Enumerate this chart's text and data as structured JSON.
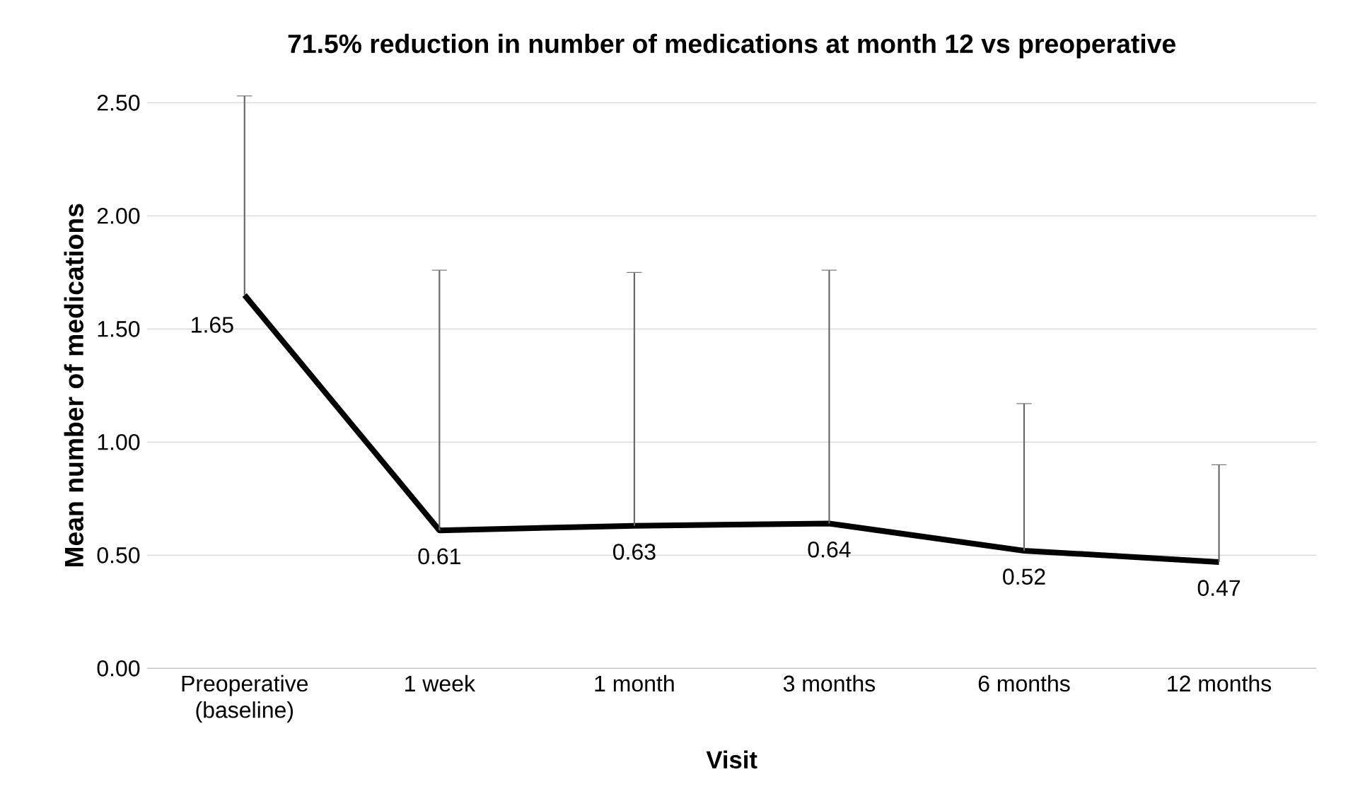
{
  "chart_data": {
    "type": "line",
    "title": "71.5% reduction in number of medications at month 12 vs preoperative",
    "xlabel": "Visit",
    "ylabel": "Mean number of medications",
    "categories": [
      "Preoperative\n(baseline)",
      "1 week",
      "1 month",
      "3 months",
      "6 months",
      "12 months"
    ],
    "values": [
      1.65,
      0.61,
      0.63,
      0.64,
      0.52,
      0.47
    ],
    "errors": [
      [
        1.65,
        2.53
      ],
      [
        0.61,
        1.76
      ],
      [
        0.63,
        1.75
      ],
      [
        0.64,
        1.76
      ],
      [
        0.52,
        1.17
      ],
      [
        0.47,
        0.9
      ]
    ],
    "color": "#000000",
    "marker": "none",
    "line_style": "solid",
    "data_labels": true,
    "grid": "y",
    "ylim": [
      0,
      2.5
    ],
    "yticks": [
      {
        "value": 0,
        "label": "0.00"
      },
      {
        "value": 0.5,
        "label": "0.50"
      },
      {
        "value": 1,
        "label": "1.00"
      },
      {
        "value": 1.5,
        "label": "1.50"
      },
      {
        "value": 2,
        "label": "2.00"
      },
      {
        "value": 2.5,
        "label": "2.50"
      }
    ]
  }
}
